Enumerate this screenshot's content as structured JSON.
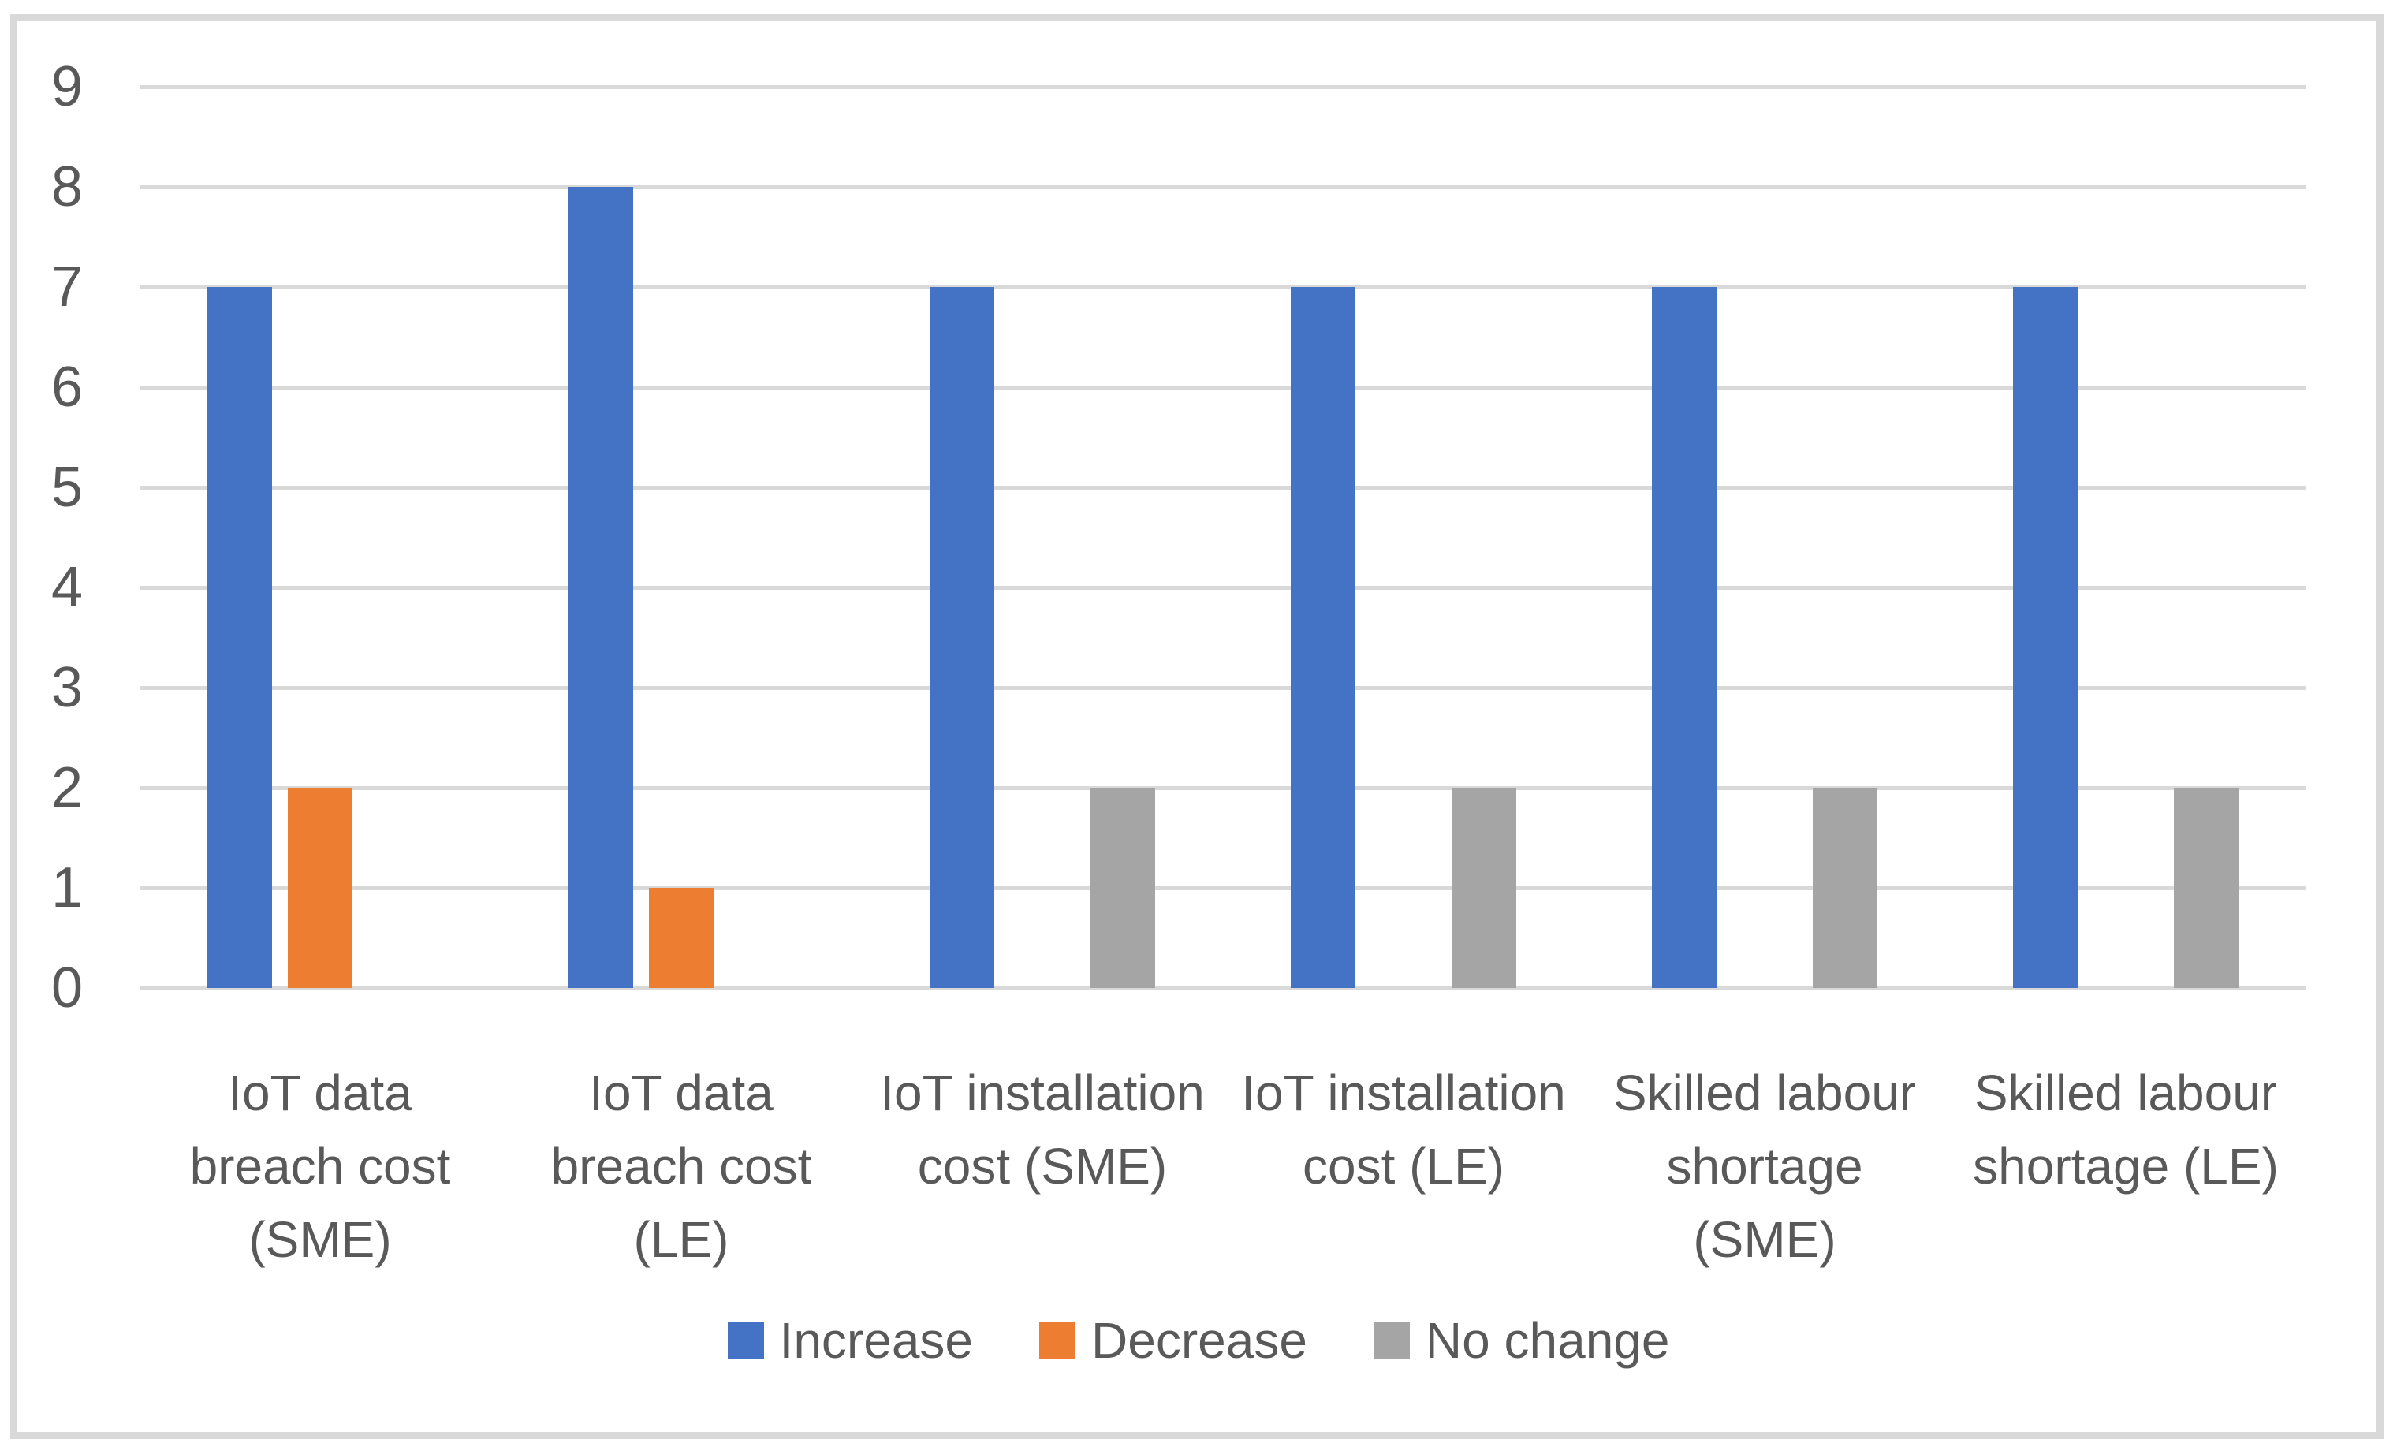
{
  "chart_data": {
    "type": "bar",
    "title": "",
    "xlabel": "",
    "ylabel": "",
    "ylim": [
      0,
      9
    ],
    "yticks": [
      0,
      1,
      2,
      3,
      4,
      5,
      6,
      7,
      8,
      9
    ],
    "grid": true,
    "legend_position": "bottom",
    "categories": [
      "IoT data breach cost (SME)",
      "IoT data breach cost (LE)",
      "IoT installation cost (SME)",
      "IoT installation cost (LE)",
      "Skilled labour shortage (SME)",
      "Skilled labour shortage (LE)"
    ],
    "category_label_lines": [
      [
        "IoT data",
        "breach cost",
        "(SME)"
      ],
      [
        "IoT data",
        "breach cost",
        "(LE)"
      ],
      [
        "IoT installation",
        "cost (SME)"
      ],
      [
        "IoT installation",
        "cost (LE)"
      ],
      [
        "Skilled labour",
        "shortage",
        "(SME)"
      ],
      [
        "Skilled labour",
        "shortage (LE)"
      ]
    ],
    "series": [
      {
        "name": "Increase",
        "color": "#4472C4",
        "values": [
          7,
          8,
          7,
          7,
          7,
          7
        ]
      },
      {
        "name": "Decrease",
        "color": "#ED7D31",
        "values": [
          2,
          1,
          0,
          0,
          0,
          0
        ]
      },
      {
        "name": "No change",
        "color": "#A5A5A5",
        "values": [
          0,
          0,
          2,
          2,
          2,
          2
        ]
      }
    ],
    "colors": {
      "gridline": "#d9d9d9",
      "frame_border": "#d9d9d9",
      "axis_text": "#595959"
    }
  }
}
